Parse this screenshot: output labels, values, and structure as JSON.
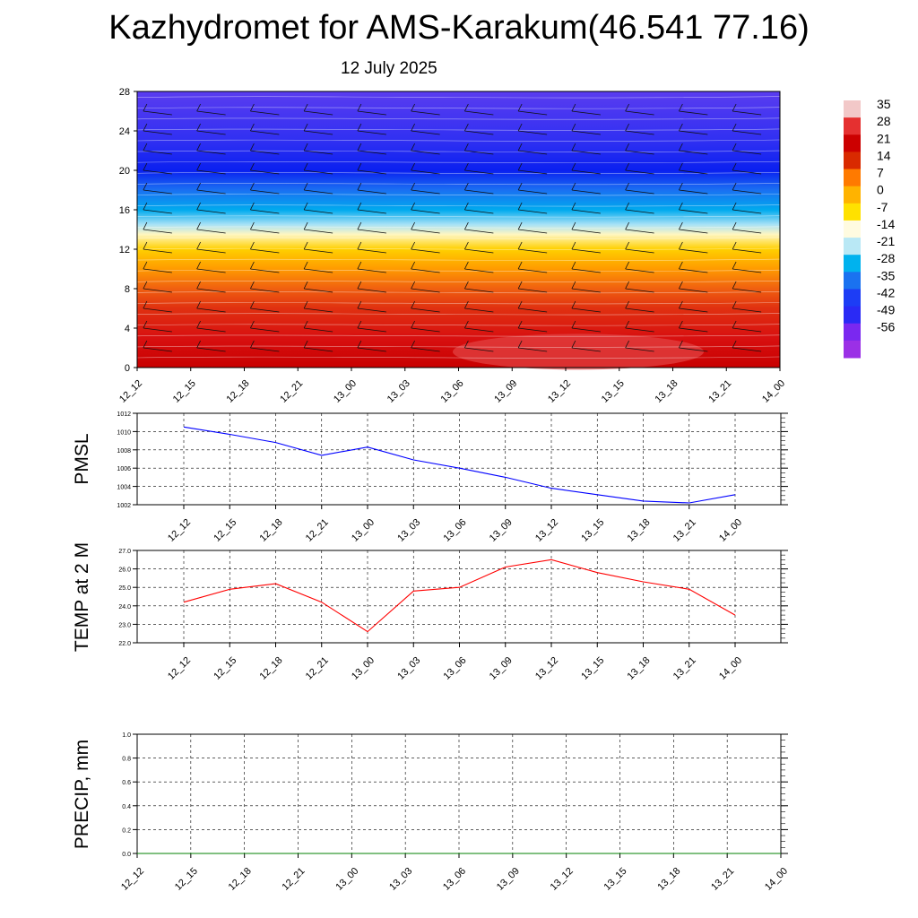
{
  "header": {
    "title": "Kazhydromet for AMS-Karakum(46.541 77.16)",
    "subtitle": "12 July 2025"
  },
  "colors": {
    "pmsl_line": "#0000ff",
    "temp_line": "#ff0000",
    "precip_line": "#008000",
    "grid": "#000000"
  },
  "chart_data": [
    {
      "type": "heatmap",
      "name": "vertical-temperature-cross-section",
      "x": [
        "12_12",
        "12_15",
        "12_18",
        "12_21",
        "13_00",
        "13_03",
        "13_06",
        "13_09",
        "13_12",
        "13_15",
        "13_18",
        "13_21",
        "14_00"
      ],
      "ylim": [
        0,
        28
      ],
      "yticks": [
        0,
        4,
        8,
        12,
        16,
        20,
        24,
        28
      ],
      "colorbar_labels": [
        "35",
        "28",
        "21",
        "14",
        "7",
        "0",
        "-7",
        "-14",
        "-21",
        "-28",
        "-35",
        "-42",
        "-49",
        "-56"
      ],
      "colorbar_colors": [
        "#f2c8c8",
        "#e53030",
        "#cc0000",
        "#d92a00",
        "#ff7a00",
        "#ffb300",
        "#ffe100",
        "#fffbe0",
        "#b9e8f5",
        "#00b2ee",
        "#1a72f0",
        "#1d3df5",
        "#2a2af5",
        "#7a28f0",
        "#9b30e6"
      ],
      "layers": [
        {
          "alt": 0,
          "color": "#c80000"
        },
        {
          "alt": 3,
          "color": "#d81010"
        },
        {
          "alt": 6,
          "color": "#e03010"
        },
        {
          "alt": 8,
          "color": "#f06010"
        },
        {
          "alt": 10,
          "color": "#ff9a00"
        },
        {
          "alt": 12,
          "color": "#ffd000"
        },
        {
          "alt": 13.5,
          "color": "#fff6c0"
        },
        {
          "alt": 14.5,
          "color": "#a8e2f6"
        },
        {
          "alt": 16,
          "color": "#00aaee"
        },
        {
          "alt": 18,
          "color": "#1a70f2"
        },
        {
          "alt": 20,
          "color": "#0a20f0"
        },
        {
          "alt": 23,
          "color": "#3030f2"
        },
        {
          "alt": 28,
          "color": "#5a3cf0"
        }
      ]
    },
    {
      "type": "line",
      "name": "PMSL",
      "ylabel": "PMSL",
      "x": [
        "12_12",
        "12_15",
        "12_18",
        "12_21",
        "13_00",
        "13_03",
        "13_06",
        "13_09",
        "13_12",
        "13_15",
        "13_18",
        "13_21",
        "14_00"
      ],
      "values": [
        1010.5,
        1009.7,
        1008.8,
        1007.4,
        1008.3,
        1006.9,
        1006.0,
        1005.0,
        1003.8,
        1003.1,
        1002.4,
        1002.2,
        1003.1
      ],
      "ylim": [
        1002,
        1012
      ],
      "yticks": [
        "1002",
        "1004",
        "1006",
        "1008",
        "1010",
        "1012"
      ],
      "grid": true
    },
    {
      "type": "line",
      "name": "TEMP at 2 M",
      "ylabel": "TEMP at 2 M",
      "x": [
        "12_12",
        "12_15",
        "12_18",
        "12_21",
        "13_00",
        "13_03",
        "13_06",
        "13_09",
        "13_12",
        "13_15",
        "13_18",
        "13_21",
        "14_00"
      ],
      "values": [
        24.2,
        24.9,
        25.2,
        24.2,
        22.6,
        24.8,
        25.0,
        26.1,
        26.5,
        25.8,
        25.3,
        24.9,
        23.5
      ],
      "ylim": [
        22.0,
        27.0
      ],
      "yticks": [
        "22.0",
        "23.0",
        "24.0",
        "25.0",
        "26.0",
        "27.0"
      ],
      "grid": true
    },
    {
      "type": "line",
      "name": "PRECIP, mm",
      "ylabel": "PRECIP, mm",
      "x": [
        "12_12",
        "12_15",
        "12_18",
        "12_21",
        "13_00",
        "13_03",
        "13_06",
        "13_09",
        "13_12",
        "13_15",
        "13_18",
        "13_21",
        "14_00"
      ],
      "values": [
        0,
        0,
        0,
        0,
        0,
        0,
        0,
        0,
        0,
        0,
        0,
        0,
        0
      ],
      "ylim": [
        0,
        1
      ],
      "yticks": [
        "0.0",
        "0.2",
        "0.4",
        "0.6",
        "0.8",
        "1.0"
      ],
      "grid": true
    }
  ]
}
